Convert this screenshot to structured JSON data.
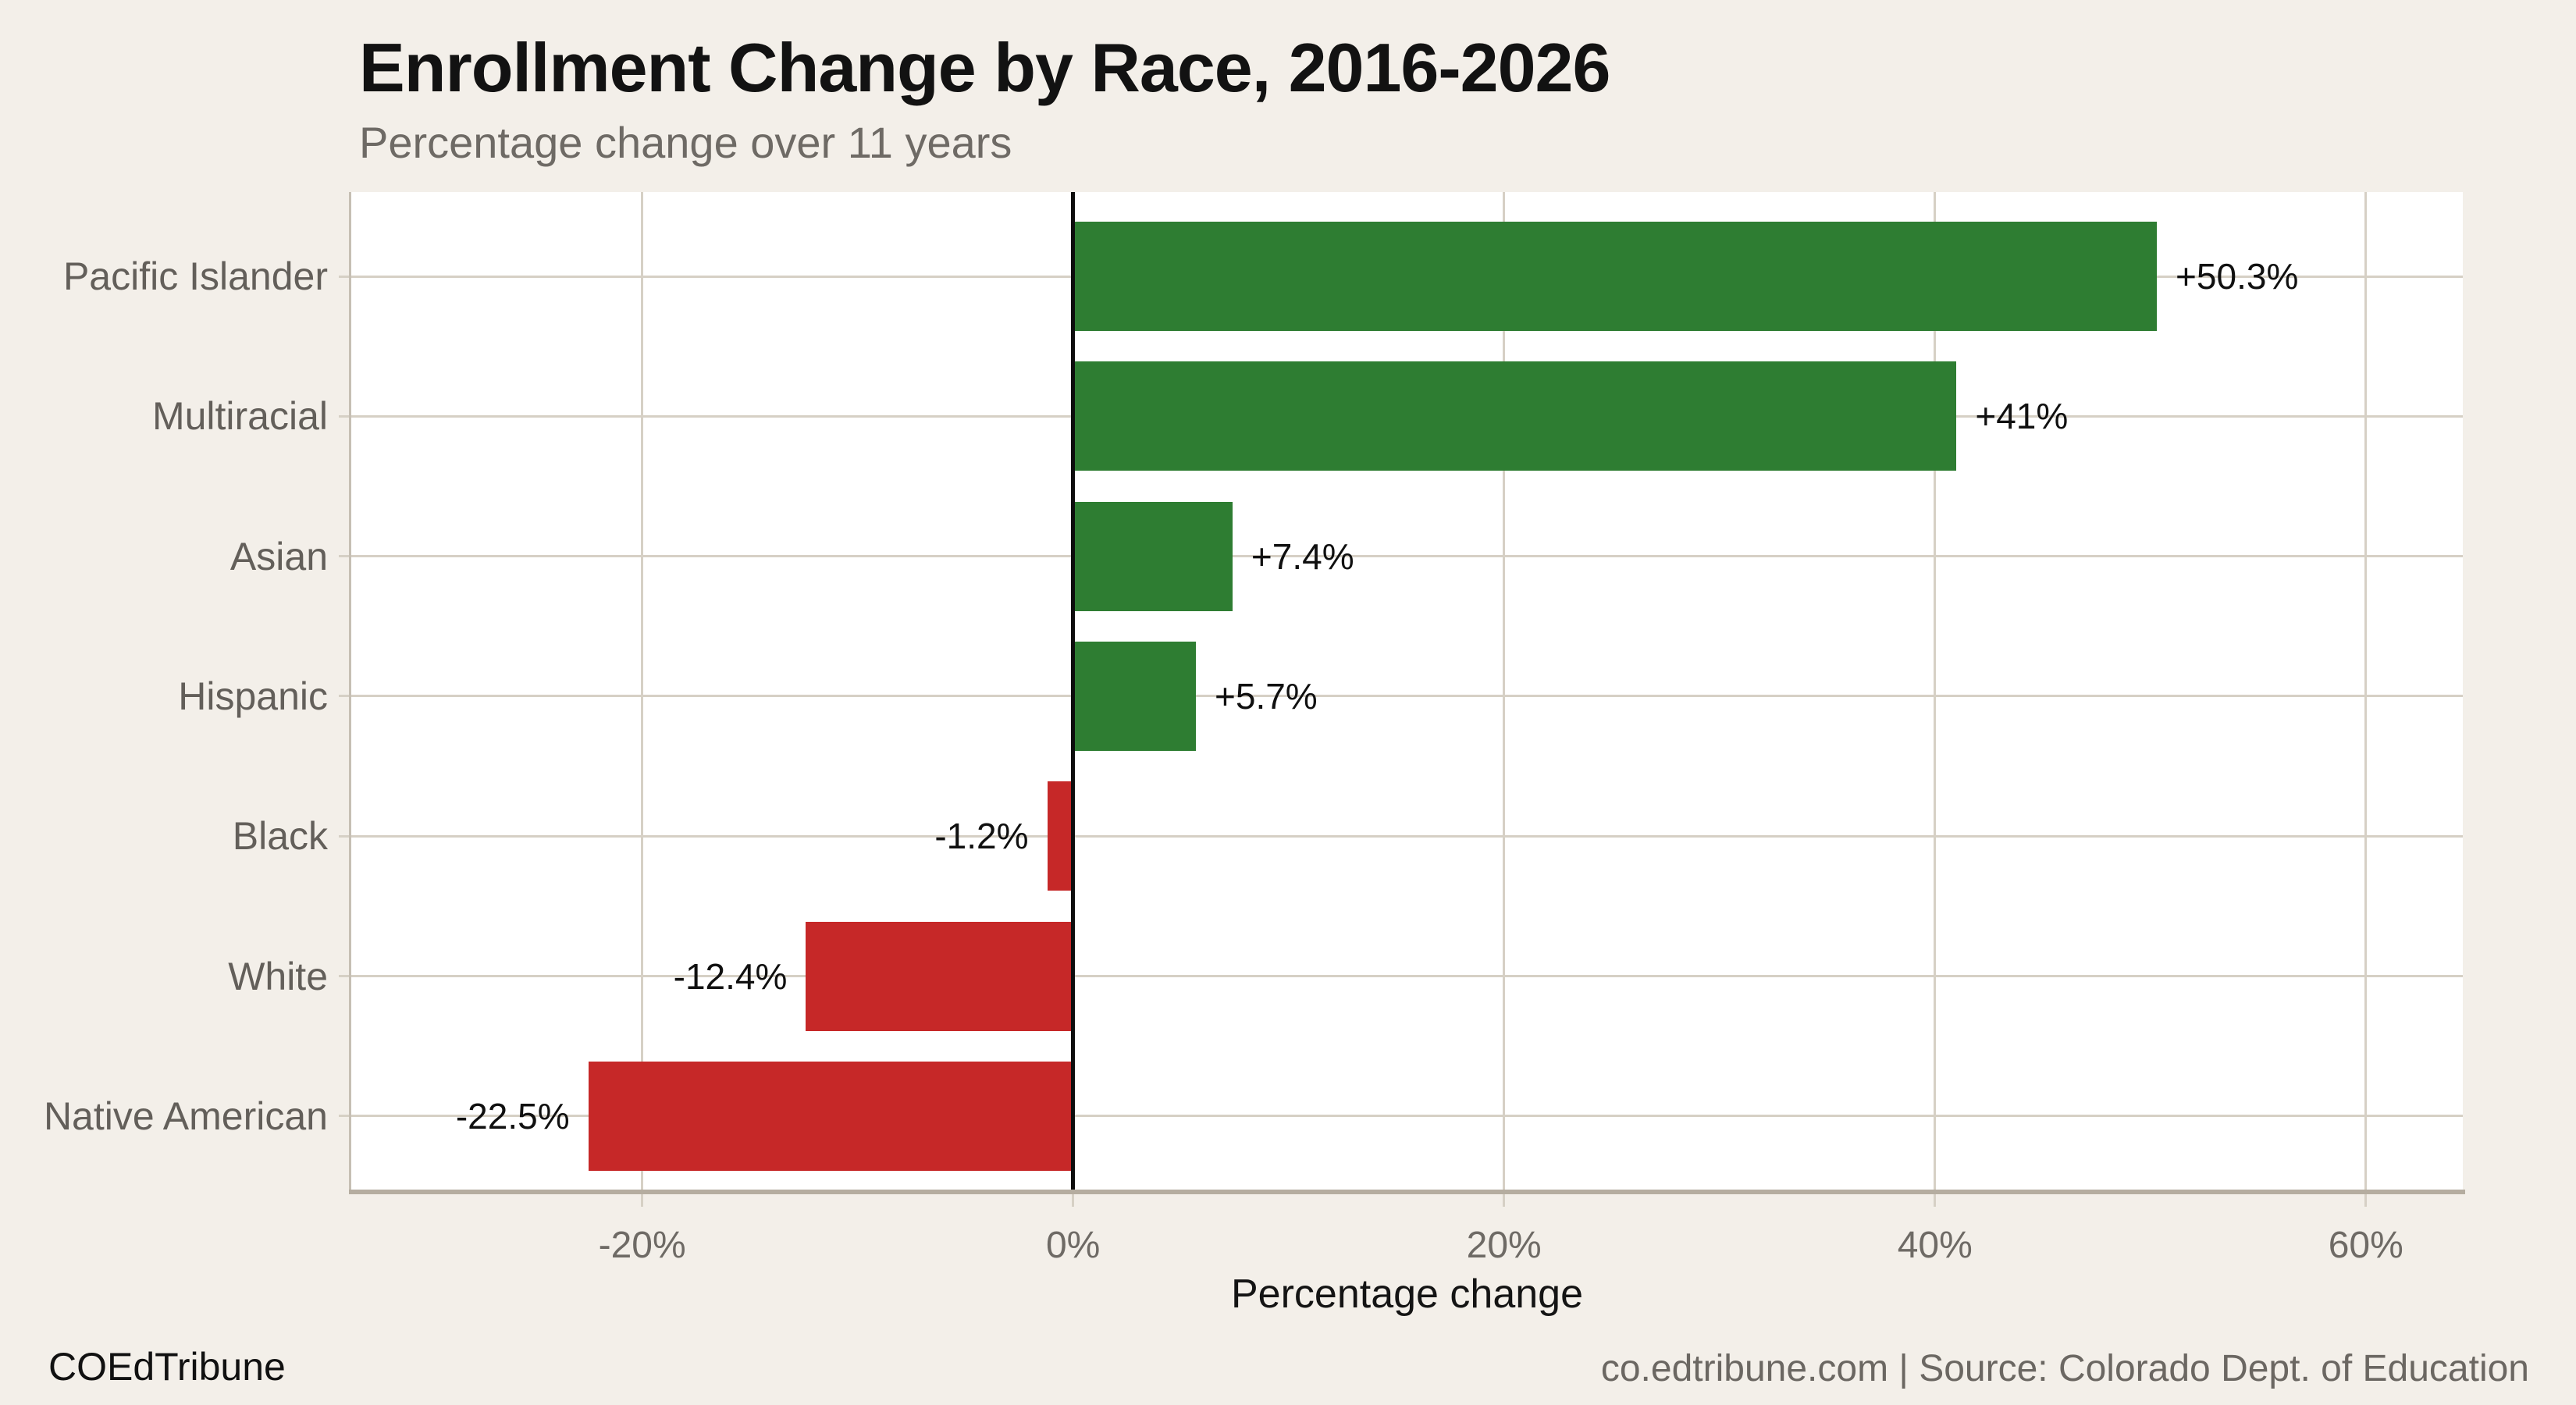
{
  "header": {
    "title": "Enrollment Change by Race, 2016-2026",
    "subtitle": "Percentage change over 11 years"
  },
  "footer": {
    "brand": "COEdTribune",
    "source": "co.edtribune.com | Source: Colorado Dept. of Education"
  },
  "chart_data": {
    "type": "bar",
    "orientation": "horizontal",
    "title": "Enrollment Change by Race, 2016-2026",
    "subtitle": "Percentage change over 11 years",
    "xlabel": "Percentage change",
    "categories": [
      "Pacific Islander",
      "Multiracial",
      "Asian",
      "Hispanic",
      "Black",
      "White",
      "Native American"
    ],
    "values": [
      50.3,
      41,
      7.4,
      5.7,
      -1.2,
      -12.4,
      -22.5
    ],
    "value_labels": [
      "+50.3%",
      "+41%",
      "+7.4%",
      "+5.7%",
      "-1.2%",
      "-12.4%",
      "-22.5%"
    ],
    "x_ticks": [
      {
        "value": -20,
        "label": "-20%"
      },
      {
        "value": 0,
        "label": "0%"
      },
      {
        "value": 20,
        "label": "20%"
      },
      {
        "value": 40,
        "label": "40%"
      },
      {
        "value": 60,
        "label": "60%"
      }
    ],
    "xlim": [
      -33.5,
      64.5
    ],
    "grid": true,
    "legend": "none",
    "colors": {
      "positive": "#2e7d32",
      "negative": "#c62828",
      "background": "#f3efe9",
      "panel": "#ffffff",
      "gridline": "#d6d0c5",
      "zero_line": "#0d0d0d",
      "axis_text": "#6e6a65",
      "category_text": "#635f5a"
    }
  }
}
